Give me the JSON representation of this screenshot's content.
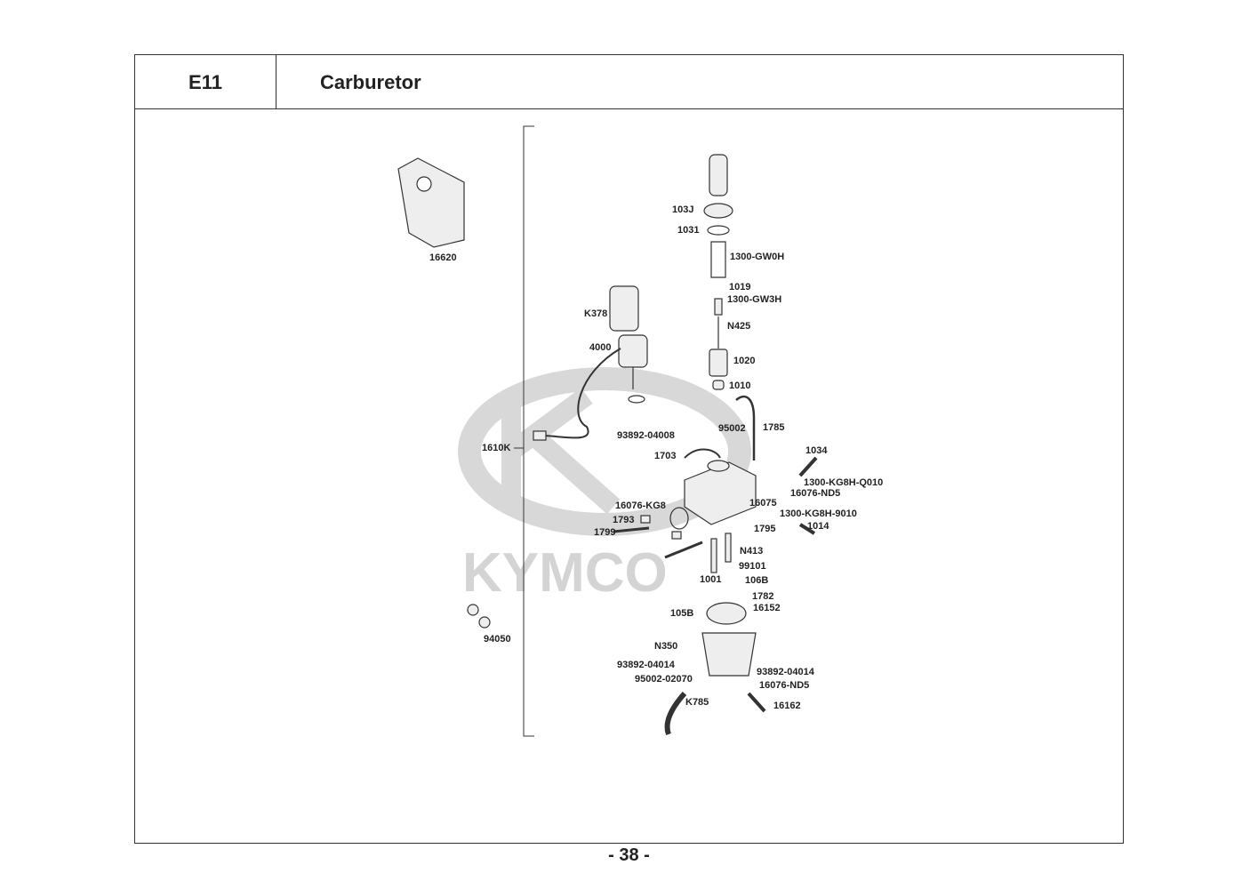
{
  "header": {
    "section_code": "E11",
    "title": "Carburetor"
  },
  "page_number": "- 38 -",
  "watermark": {
    "brand": "KYMCO"
  },
  "parts": [
    "16620",
    "K378",
    "4000",
    "1610K",
    "103J",
    "1031",
    "1300-GW0H",
    "1019",
    "1300-GW3H",
    "N425",
    "1020",
    "1010",
    "93892-04008",
    "95002",
    "1785",
    "1703",
    "1034",
    "1300-KG8H-Q010",
    "16076-ND5",
    "16076-KG8",
    "16075",
    "1300-KG8H-9010",
    "1795",
    "1014",
    "1793",
    "1799",
    "N413",
    "99101",
    "1001",
    "106B",
    "1782",
    "16152",
    "105B",
    "N350",
    "93892-04014",
    "93892-04014",
    "95002-02070",
    "16076-ND5",
    "K785",
    "16162",
    "94050"
  ]
}
